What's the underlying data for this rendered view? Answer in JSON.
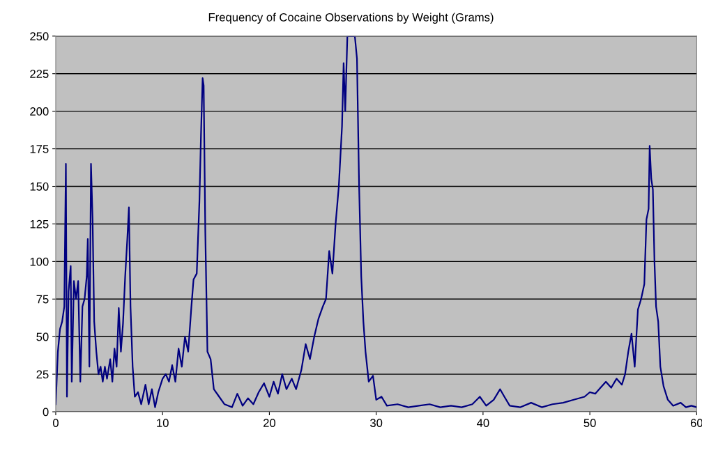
{
  "chart_data": {
    "type": "line",
    "title": "Frequency of Cocaine Observations by Weight (Grams)",
    "xlim": [
      0,
      60
    ],
    "xticks": [
      0,
      10,
      20,
      30,
      40,
      50,
      60
    ],
    "ylim": [
      0,
      250
    ],
    "yticks": [
      0,
      25,
      50,
      75,
      100,
      125,
      150,
      175,
      200,
      225,
      250
    ],
    "grid": "y",
    "marker": "none",
    "line_style": "solid",
    "series": [
      {
        "color": "#000080",
        "x": [
          0.0,
          0.2,
          0.4,
          0.6,
          0.8,
          0.95,
          1.05,
          1.2,
          1.4,
          1.5,
          1.7,
          1.9,
          2.1,
          2.3,
          2.5,
          2.7,
          2.9,
          3.0,
          3.15,
          3.3,
          3.45,
          3.6,
          3.8,
          4.0,
          4.2,
          4.4,
          4.6,
          4.8,
          5.1,
          5.3,
          5.5,
          5.7,
          5.9,
          6.1,
          6.3,
          6.5,
          6.7,
          6.85,
          7.0,
          7.2,
          7.4,
          7.7,
          8.0,
          8.4,
          8.7,
          9.0,
          9.3,
          9.6,
          10.0,
          10.3,
          10.6,
          10.9,
          11.2,
          11.5,
          11.8,
          12.1,
          12.4,
          12.7,
          12.9,
          13.2,
          13.45,
          13.6,
          13.75,
          13.85,
          14.0,
          14.2,
          14.5,
          14.8,
          15.3,
          15.8,
          16.5,
          17.0,
          17.5,
          18.0,
          18.5,
          19.0,
          19.5,
          20.0,
          20.4,
          20.8,
          21.2,
          21.6,
          22.1,
          22.5,
          23.0,
          23.4,
          23.8,
          24.2,
          24.6,
          25.0,
          25.3,
          25.6,
          25.9,
          26.2,
          26.5,
          26.8,
          26.95,
          27.1,
          27.3,
          27.6,
          28.0,
          28.2,
          28.4,
          28.6,
          28.8,
          29.0,
          29.3,
          29.7,
          30.0,
          30.5,
          31.0,
          32.0,
          33.0,
          34.0,
          35.0,
          36.0,
          37.0,
          38.0,
          39.0,
          39.7,
          40.3,
          41.0,
          41.6,
          42.0,
          42.5,
          43.5,
          44.5,
          45.5,
          46.5,
          47.5,
          48.5,
          49.5,
          50.0,
          50.5,
          51.0,
          51.5,
          52.0,
          52.5,
          53.0,
          53.3,
          53.6,
          53.9,
          54.2,
          54.5,
          54.8,
          55.1,
          55.3,
          55.5,
          55.6,
          55.75,
          55.9,
          56.05,
          56.2,
          56.4,
          56.6,
          56.9,
          57.3,
          57.8,
          58.5,
          59.0,
          59.5,
          60.0
        ],
        "values": [
          5,
          40,
          55,
          60,
          70,
          165,
          10,
          80,
          97,
          20,
          87,
          75,
          87,
          20,
          70,
          75,
          90,
          115,
          30,
          165,
          128,
          60,
          40,
          25,
          30,
          20,
          30,
          22,
          35,
          20,
          42,
          30,
          69,
          40,
          59,
          90,
          115,
          136,
          70,
          30,
          10,
          13,
          5,
          18,
          5,
          15,
          3,
          13,
          22,
          25,
          20,
          31,
          20,
          42,
          30,
          50,
          40,
          70,
          88,
          92,
          140,
          185,
          222,
          217,
          120,
          40,
          35,
          15,
          10,
          5,
          3,
          12,
          4,
          9,
          5,
          13,
          19,
          10,
          20,
          12,
          25,
          15,
          22,
          15,
          28,
          45,
          35,
          50,
          62,
          70,
          75,
          107,
          92,
          125,
          150,
          190,
          232,
          200,
          250,
          250,
          250,
          235,
          150,
          90,
          60,
          40,
          20,
          24,
          8,
          10,
          4,
          5,
          3,
          4,
          5,
          3,
          4,
          3,
          5,
          10,
          4,
          8,
          15,
          10,
          4,
          3,
          6,
          3,
          5,
          6,
          8,
          10,
          13,
          12,
          16,
          20,
          16,
          22,
          18,
          25,
          40,
          52,
          30,
          68,
          75,
          85,
          128,
          135,
          177,
          155,
          148,
          100,
          70,
          60,
          30,
          17,
          8,
          4,
          6,
          3,
          4,
          3
        ]
      }
    ]
  }
}
